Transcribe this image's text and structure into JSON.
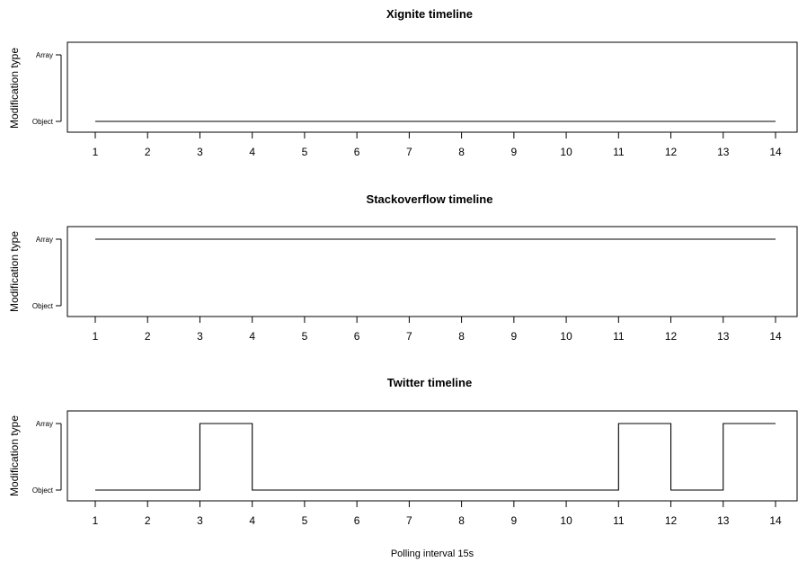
{
  "chart_data": [
    {
      "type": "line",
      "step": true,
      "title": "Xignite timeline",
      "ylabel": "Modification type",
      "y_categories": [
        "Object",
        "Array"
      ],
      "x": [
        1,
        2,
        3,
        4,
        5,
        6,
        7,
        8,
        9,
        10,
        11,
        12,
        13,
        14
      ],
      "values": [
        "Object",
        "Object",
        "Object",
        "Object",
        "Object",
        "Object",
        "Object",
        "Object",
        "Object",
        "Object",
        "Object",
        "Object",
        "Object",
        "Object"
      ],
      "xticks": [
        1,
        2,
        3,
        4,
        5,
        6,
        7,
        8,
        9,
        10,
        11,
        12,
        13,
        14
      ]
    },
    {
      "type": "line",
      "step": true,
      "title": "Stackoverflow timeline",
      "ylabel": "Modification type",
      "y_categories": [
        "Object",
        "Array"
      ],
      "x": [
        1,
        2,
        3,
        4,
        5,
        6,
        7,
        8,
        9,
        10,
        11,
        12,
        13,
        14
      ],
      "values": [
        "Array",
        "Array",
        "Array",
        "Array",
        "Array",
        "Array",
        "Array",
        "Array",
        "Array",
        "Array",
        "Array",
        "Array",
        "Array",
        "Array"
      ],
      "xticks": [
        1,
        2,
        3,
        4,
        5,
        6,
        7,
        8,
        9,
        10,
        11,
        12,
        13,
        14
      ]
    },
    {
      "type": "line",
      "step": true,
      "title": "Twitter timeline",
      "ylabel": "Modification type",
      "xlabel": "Polling interval 15s",
      "y_categories": [
        "Object",
        "Array"
      ],
      "x": [
        1,
        2,
        3,
        4,
        5,
        6,
        7,
        8,
        9,
        10,
        11,
        12,
        13,
        14
      ],
      "values": [
        "Object",
        "Object",
        "Array",
        "Object",
        "Object",
        "Object",
        "Object",
        "Object",
        "Object",
        "Object",
        "Array",
        "Object",
        "Array",
        "Array"
      ],
      "xticks": [
        1,
        2,
        3,
        4,
        5,
        6,
        7,
        8,
        9,
        10,
        11,
        12,
        13,
        14
      ]
    }
  ]
}
